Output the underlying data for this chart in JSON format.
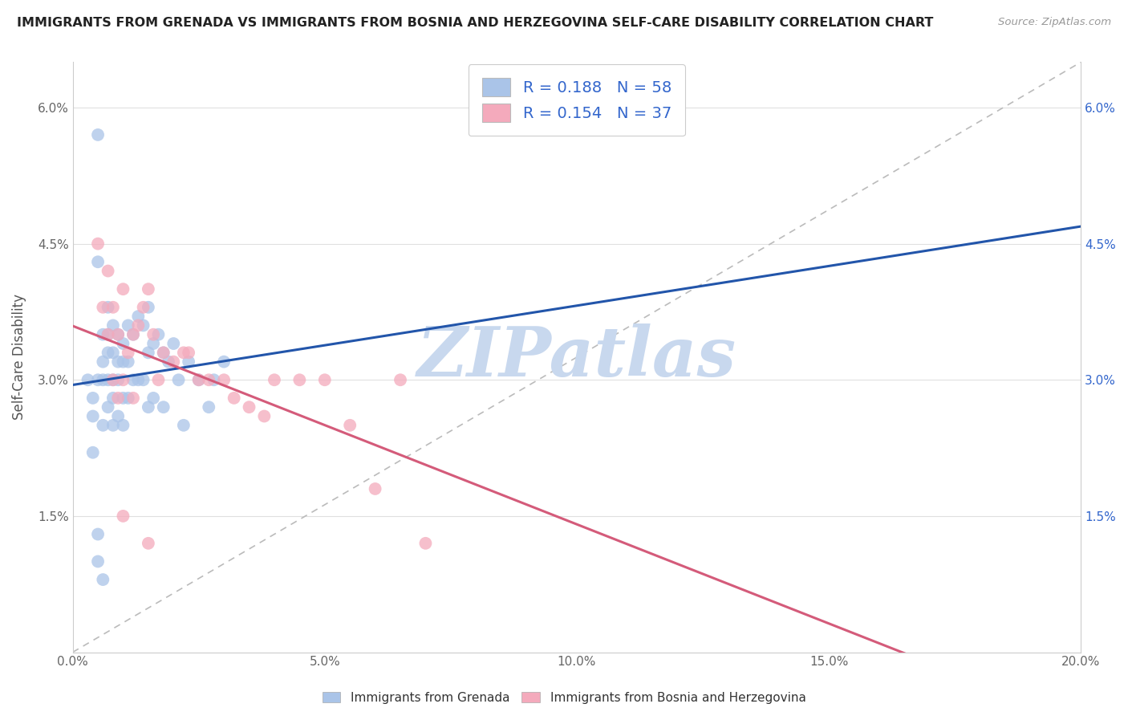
{
  "title": "IMMIGRANTS FROM GRENADA VS IMMIGRANTS FROM BOSNIA AND HERZEGOVINA SELF-CARE DISABILITY CORRELATION CHART",
  "source": "Source: ZipAtlas.com",
  "ylabel": "Self-Care Disability",
  "xlim": [
    0.0,
    0.2
  ],
  "ylim": [
    0.0,
    0.065
  ],
  "xtick_vals": [
    0.0,
    0.05,
    0.1,
    0.15,
    0.2
  ],
  "xtick_labels": [
    "0.0%",
    "5.0%",
    "10.0%",
    "15.0%",
    "20.0%"
  ],
  "ytick_vals": [
    0.0,
    0.015,
    0.03,
    0.045,
    0.06
  ],
  "ytick_labels_left": [
    "",
    "1.5%",
    "3.0%",
    "4.5%",
    "6.0%"
  ],
  "ytick_labels_right": [
    "",
    "1.5%",
    "3.0%",
    "4.5%",
    "6.0%"
  ],
  "blue_scatter_color": "#aac4e8",
  "pink_scatter_color": "#f4aabc",
  "blue_line_color": "#2255aa",
  "pink_line_color": "#d45b7a",
  "gray_dashed_color": "#bbbbbb",
  "R_blue": 0.188,
  "N_blue": 58,
  "R_pink": 0.154,
  "N_pink": 37,
  "legend_label_blue": "Immigrants from Grenada",
  "legend_label_pink": "Immigrants from Bosnia and Herzegovina",
  "watermark": "ZIPatlas",
  "watermark_color": "#c8d8ee",
  "grid_color": "#e0e0e0",
  "stat_text_color": "#3366cc",
  "title_color": "#222222",
  "source_color": "#999999",
  "axis_label_color": "#555555",
  "tick_color": "#666666",
  "blue_x": [
    0.003,
    0.004,
    0.004,
    0.005,
    0.005,
    0.005,
    0.005,
    0.006,
    0.006,
    0.006,
    0.006,
    0.007,
    0.007,
    0.007,
    0.007,
    0.007,
    0.008,
    0.008,
    0.008,
    0.008,
    0.008,
    0.009,
    0.009,
    0.009,
    0.009,
    0.01,
    0.01,
    0.01,
    0.01,
    0.011,
    0.011,
    0.011,
    0.012,
    0.012,
    0.013,
    0.013,
    0.014,
    0.014,
    0.015,
    0.015,
    0.015,
    0.016,
    0.016,
    0.017,
    0.018,
    0.018,
    0.019,
    0.02,
    0.021,
    0.022,
    0.023,
    0.025,
    0.027,
    0.028,
    0.03,
    0.004,
    0.005,
    0.006
  ],
  "blue_y": [
    0.03,
    0.028,
    0.026,
    0.057,
    0.043,
    0.03,
    0.01,
    0.035,
    0.032,
    0.03,
    0.025,
    0.038,
    0.035,
    0.033,
    0.03,
    0.027,
    0.036,
    0.033,
    0.03,
    0.028,
    0.025,
    0.035,
    0.032,
    0.03,
    0.026,
    0.034,
    0.032,
    0.028,
    0.025,
    0.036,
    0.032,
    0.028,
    0.035,
    0.03,
    0.037,
    0.03,
    0.036,
    0.03,
    0.038,
    0.033,
    0.027,
    0.034,
    0.028,
    0.035,
    0.033,
    0.027,
    0.032,
    0.034,
    0.03,
    0.025,
    0.032,
    0.03,
    0.027,
    0.03,
    0.032,
    0.022,
    0.013,
    0.008
  ],
  "pink_x": [
    0.005,
    0.006,
    0.007,
    0.007,
    0.008,
    0.008,
    0.009,
    0.009,
    0.01,
    0.01,
    0.011,
    0.012,
    0.012,
    0.013,
    0.014,
    0.015,
    0.016,
    0.017,
    0.018,
    0.02,
    0.022,
    0.023,
    0.025,
    0.027,
    0.03,
    0.032,
    0.035,
    0.038,
    0.04,
    0.045,
    0.05,
    0.055,
    0.06,
    0.065,
    0.07,
    0.01,
    0.015
  ],
  "pink_y": [
    0.045,
    0.038,
    0.042,
    0.035,
    0.038,
    0.03,
    0.035,
    0.028,
    0.04,
    0.03,
    0.033,
    0.035,
    0.028,
    0.036,
    0.038,
    0.04,
    0.035,
    0.03,
    0.033,
    0.032,
    0.033,
    0.033,
    0.03,
    0.03,
    0.03,
    0.028,
    0.027,
    0.026,
    0.03,
    0.03,
    0.03,
    0.025,
    0.018,
    0.03,
    0.012,
    0.015,
    0.012
  ]
}
